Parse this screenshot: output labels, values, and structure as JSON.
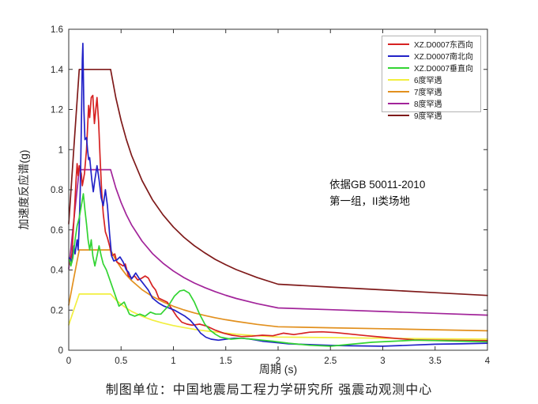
{
  "figure": {
    "xlabel": "周期 (s)",
    "ylabel": "加速度反应谱(g)",
    "caption": "制图单位：中国地震局工程力学研究所 强震动观测中心",
    "annotation": {
      "line1": "依据GB 50011-2010",
      "line2": "第一组，II类场地"
    }
  },
  "chart_data": {
    "type": "line",
    "title": "",
    "xlabel": "周期 (s)",
    "ylabel": "加速度反应谱(g)",
    "xlim": [
      0,
      4
    ],
    "ylim": [
      0,
      1.6
    ],
    "xticks": [
      0,
      0.5,
      1,
      1.5,
      2,
      2.5,
      3,
      3.5,
      4
    ],
    "yticks": [
      0,
      0.2,
      0.4,
      0.6,
      0.8,
      1,
      1.2,
      1.4,
      1.6
    ],
    "grid": false,
    "legend_position": "top-right-inside",
    "axis_color": "#333333",
    "tick_length": 5,
    "draw_order": [
      3,
      4,
      5,
      6,
      0,
      1,
      2
    ],
    "series": [
      {
        "name": "XZ.D0007东西向",
        "color": "#d62222",
        "points": [
          [
            0.01,
            0.43
          ],
          [
            0.03,
            0.48
          ],
          [
            0.05,
            0.65
          ],
          [
            0.07,
            0.85
          ],
          [
            0.08,
            0.93
          ],
          [
            0.09,
            0.87
          ],
          [
            0.1,
            0.92
          ],
          [
            0.12,
            0.88
          ],
          [
            0.13,
            0.82
          ],
          [
            0.15,
            0.88
          ],
          [
            0.17,
            1.0
          ],
          [
            0.19,
            1.22
          ],
          [
            0.2,
            1.16
          ],
          [
            0.215,
            1.26
          ],
          [
            0.23,
            1.27
          ],
          [
            0.245,
            1.13
          ],
          [
            0.26,
            1.21
          ],
          [
            0.27,
            1.26
          ],
          [
            0.285,
            1.14
          ],
          [
            0.3,
            0.95
          ],
          [
            0.315,
            0.79
          ],
          [
            0.33,
            0.68
          ],
          [
            0.35,
            0.59
          ],
          [
            0.37,
            0.56
          ],
          [
            0.39,
            0.52
          ],
          [
            0.41,
            0.47
          ],
          [
            0.44,
            0.48
          ],
          [
            0.46,
            0.44
          ],
          [
            0.49,
            0.43
          ],
          [
            0.52,
            0.42
          ],
          [
            0.54,
            0.43
          ],
          [
            0.57,
            0.37
          ],
          [
            0.6,
            0.36
          ],
          [
            0.63,
            0.37
          ],
          [
            0.66,
            0.35
          ],
          [
            0.7,
            0.36
          ],
          [
            0.73,
            0.37
          ],
          [
            0.76,
            0.36
          ],
          [
            0.8,
            0.32
          ],
          [
            0.83,
            0.3
          ],
          [
            0.86,
            0.26
          ],
          [
            0.9,
            0.25
          ],
          [
            0.94,
            0.24
          ],
          [
            0.98,
            0.21
          ],
          [
            1.03,
            0.17
          ],
          [
            1.08,
            0.14
          ],
          [
            1.13,
            0.13
          ],
          [
            1.18,
            0.125
          ],
          [
            1.25,
            0.13
          ],
          [
            1.32,
            0.12
          ],
          [
            1.4,
            0.1
          ],
          [
            1.48,
            0.085
          ],
          [
            1.56,
            0.075
          ],
          [
            1.65,
            0.068
          ],
          [
            1.75,
            0.07
          ],
          [
            1.85,
            0.075
          ],
          [
            1.95,
            0.072
          ],
          [
            2.05,
            0.085
          ],
          [
            2.15,
            0.078
          ],
          [
            2.3,
            0.09
          ],
          [
            2.42,
            0.092
          ],
          [
            2.55,
            0.088
          ],
          [
            2.7,
            0.08
          ],
          [
            2.85,
            0.072
          ],
          [
            3.0,
            0.065
          ],
          [
            3.15,
            0.058
          ],
          [
            3.3,
            0.052
          ],
          [
            3.5,
            0.05
          ],
          [
            3.75,
            0.049
          ],
          [
            4.0,
            0.048
          ]
        ]
      },
      {
        "name": "XZ.D0007南北向",
        "color": "#2222c8",
        "points": [
          [
            0.01,
            0.46
          ],
          [
            0.03,
            0.44
          ],
          [
            0.05,
            0.52
          ],
          [
            0.06,
            0.48
          ],
          [
            0.08,
            0.55
          ],
          [
            0.09,
            0.5
          ],
          [
            0.1,
            0.62
          ],
          [
            0.11,
            0.8
          ],
          [
            0.12,
            1.1
          ],
          [
            0.13,
            1.45
          ],
          [
            0.135,
            1.53
          ],
          [
            0.145,
            1.2
          ],
          [
            0.155,
            1.05
          ],
          [
            0.17,
            1.06
          ],
          [
            0.18,
            1.0
          ],
          [
            0.19,
            0.95
          ],
          [
            0.2,
            0.96
          ],
          [
            0.22,
            0.85
          ],
          [
            0.235,
            0.79
          ],
          [
            0.25,
            0.85
          ],
          [
            0.27,
            0.92
          ],
          [
            0.29,
            0.85
          ],
          [
            0.31,
            0.76
          ],
          [
            0.33,
            0.72
          ],
          [
            0.35,
            0.8
          ],
          [
            0.37,
            0.72
          ],
          [
            0.39,
            0.58
          ],
          [
            0.41,
            0.47
          ],
          [
            0.43,
            0.445
          ],
          [
            0.46,
            0.45
          ],
          [
            0.49,
            0.465
          ],
          [
            0.52,
            0.44
          ],
          [
            0.55,
            0.4
          ],
          [
            0.57,
            0.39
          ],
          [
            0.6,
            0.355
          ],
          [
            0.64,
            0.385
          ],
          [
            0.67,
            0.36
          ],
          [
            0.7,
            0.34
          ],
          [
            0.76,
            0.3
          ],
          [
            0.8,
            0.26
          ],
          [
            0.86,
            0.235
          ],
          [
            0.91,
            0.22
          ],
          [
            0.96,
            0.21
          ],
          [
            1.01,
            0.2
          ],
          [
            1.06,
            0.185
          ],
          [
            1.11,
            0.17
          ],
          [
            1.16,
            0.15
          ],
          [
            1.21,
            0.12
          ],
          [
            1.26,
            0.085
          ],
          [
            1.31,
            0.065
          ],
          [
            1.36,
            0.055
          ],
          [
            1.43,
            0.05
          ],
          [
            1.5,
            0.055
          ],
          [
            1.58,
            0.06
          ],
          [
            1.66,
            0.06
          ],
          [
            1.74,
            0.055
          ],
          [
            1.85,
            0.045
          ],
          [
            1.95,
            0.04
          ],
          [
            2.1,
            0.032
          ],
          [
            2.3,
            0.028
          ],
          [
            2.5,
            0.024
          ],
          [
            2.7,
            0.022
          ],
          [
            3.0,
            0.02
          ],
          [
            3.25,
            0.025
          ],
          [
            3.5,
            0.03
          ],
          [
            3.75,
            0.032
          ],
          [
            4.0,
            0.035
          ]
        ]
      },
      {
        "name": "XZ.D0007垂直向",
        "color": "#33d433",
        "points": [
          [
            0.01,
            0.45
          ],
          [
            0.02,
            0.42
          ],
          [
            0.04,
            0.46
          ],
          [
            0.06,
            0.55
          ],
          [
            0.08,
            0.62
          ],
          [
            0.1,
            0.66
          ],
          [
            0.12,
            0.72
          ],
          [
            0.14,
            0.78
          ],
          [
            0.155,
            0.7
          ],
          [
            0.17,
            0.63
          ],
          [
            0.185,
            0.55
          ],
          [
            0.2,
            0.5
          ],
          [
            0.215,
            0.55
          ],
          [
            0.23,
            0.47
          ],
          [
            0.25,
            0.42
          ],
          [
            0.27,
            0.47
          ],
          [
            0.29,
            0.52
          ],
          [
            0.31,
            0.47
          ],
          [
            0.33,
            0.43
          ],
          [
            0.36,
            0.4
          ],
          [
            0.4,
            0.34
          ],
          [
            0.44,
            0.28
          ],
          [
            0.48,
            0.22
          ],
          [
            0.53,
            0.24
          ],
          [
            0.58,
            0.18
          ],
          [
            0.63,
            0.17
          ],
          [
            0.68,
            0.18
          ],
          [
            0.73,
            0.17
          ],
          [
            0.78,
            0.19
          ],
          [
            0.83,
            0.18
          ],
          [
            0.88,
            0.18
          ],
          [
            0.95,
            0.22
          ],
          [
            1.01,
            0.27
          ],
          [
            1.06,
            0.295
          ],
          [
            1.1,
            0.3
          ],
          [
            1.15,
            0.285
          ],
          [
            1.2,
            0.24
          ],
          [
            1.25,
            0.18
          ],
          [
            1.3,
            0.13
          ],
          [
            1.35,
            0.1
          ],
          [
            1.4,
            0.08
          ],
          [
            1.45,
            0.065
          ],
          [
            1.55,
            0.055
          ],
          [
            1.65,
            0.06
          ],
          [
            1.75,
            0.055
          ],
          [
            1.85,
            0.05
          ],
          [
            1.95,
            0.045
          ],
          [
            2.1,
            0.035
          ],
          [
            2.3,
            0.025
          ],
          [
            2.5,
            0.02
          ],
          [
            2.7,
            0.03
          ],
          [
            2.9,
            0.04
          ],
          [
            3.1,
            0.045
          ],
          [
            3.3,
            0.05
          ],
          [
            3.5,
            0.048
          ],
          [
            3.75,
            0.045
          ],
          [
            4.0,
            0.042
          ]
        ]
      },
      {
        "name": "6度罕遇",
        "color": "#f2ef3f",
        "points": [
          [
            0,
            0.126
          ],
          [
            0.05,
            0.203
          ],
          [
            0.1,
            0.28
          ],
          [
            0.4,
            0.28
          ],
          [
            0.45,
            0.252
          ],
          [
            0.5,
            0.229
          ],
          [
            0.55,
            0.21
          ],
          [
            0.6,
            0.194
          ],
          [
            0.7,
            0.169
          ],
          [
            0.8,
            0.15
          ],
          [
            0.9,
            0.135
          ],
          [
            1,
            0.123
          ],
          [
            1.1,
            0.113
          ],
          [
            1.2,
            0.104
          ],
          [
            1.3,
            0.097
          ],
          [
            1.4,
            0.091
          ],
          [
            1.5,
            0.085
          ],
          [
            1.6,
            0.08
          ],
          [
            1.8,
            0.072
          ],
          [
            2,
            0.066
          ],
          [
            2.5,
            0.063
          ],
          [
            3,
            0.06
          ],
          [
            3.5,
            0.057
          ],
          [
            4,
            0.055
          ]
        ]
      },
      {
        "name": "7度罕遇",
        "color": "#e2901e",
        "points": [
          [
            0,
            0.225
          ],
          [
            0.05,
            0.363
          ],
          [
            0.1,
            0.5
          ],
          [
            0.4,
            0.5
          ],
          [
            0.45,
            0.45
          ],
          [
            0.5,
            0.409
          ],
          [
            0.55,
            0.375
          ],
          [
            0.6,
            0.347
          ],
          [
            0.7,
            0.302
          ],
          [
            0.8,
            0.268
          ],
          [
            0.9,
            0.241
          ],
          [
            1,
            0.219
          ],
          [
            1.1,
            0.201
          ],
          [
            1.2,
            0.186
          ],
          [
            1.3,
            0.173
          ],
          [
            1.4,
            0.162
          ],
          [
            1.5,
            0.152
          ],
          [
            1.6,
            0.144
          ],
          [
            1.8,
            0.129
          ],
          [
            2,
            0.117
          ],
          [
            2.5,
            0.112
          ],
          [
            3,
            0.107
          ],
          [
            3.5,
            0.102
          ],
          [
            4,
            0.097
          ]
        ]
      },
      {
        "name": "8度罕遇",
        "color": "#a2249a",
        "points": [
          [
            0,
            0.405
          ],
          [
            0.05,
            0.653
          ],
          [
            0.1,
            0.9
          ],
          [
            0.4,
            0.9
          ],
          [
            0.45,
            0.809
          ],
          [
            0.5,
            0.736
          ],
          [
            0.55,
            0.676
          ],
          [
            0.6,
            0.625
          ],
          [
            0.7,
            0.544
          ],
          [
            0.8,
            0.482
          ],
          [
            0.9,
            0.434
          ],
          [
            1,
            0.395
          ],
          [
            1.1,
            0.362
          ],
          [
            1.2,
            0.335
          ],
          [
            1.3,
            0.312
          ],
          [
            1.4,
            0.292
          ],
          [
            1.5,
            0.274
          ],
          [
            1.6,
            0.258
          ],
          [
            1.8,
            0.232
          ],
          [
            2,
            0.211
          ],
          [
            2.5,
            0.202
          ],
          [
            3,
            0.193
          ],
          [
            3.5,
            0.184
          ],
          [
            4,
            0.175
          ]
        ]
      },
      {
        "name": "9度罕遇",
        "color": "#7f1a1a",
        "points": [
          [
            0,
            0.63
          ],
          [
            0.05,
            1.015
          ],
          [
            0.1,
            1.4
          ],
          [
            0.4,
            1.4
          ],
          [
            0.45,
            1.259
          ],
          [
            0.5,
            1.145
          ],
          [
            0.55,
            1.051
          ],
          [
            0.6,
            0.972
          ],
          [
            0.7,
            0.846
          ],
          [
            0.8,
            0.75
          ],
          [
            0.9,
            0.675
          ],
          [
            1,
            0.614
          ],
          [
            1.1,
            0.563
          ],
          [
            1.2,
            0.521
          ],
          [
            1.3,
            0.485
          ],
          [
            1.4,
            0.453
          ],
          [
            1.5,
            0.426
          ],
          [
            1.6,
            0.402
          ],
          [
            1.8,
            0.362
          ],
          [
            2,
            0.329
          ],
          [
            2.5,
            0.315
          ],
          [
            3,
            0.301
          ],
          [
            3.5,
            0.287
          ],
          [
            4,
            0.273
          ]
        ]
      }
    ]
  }
}
